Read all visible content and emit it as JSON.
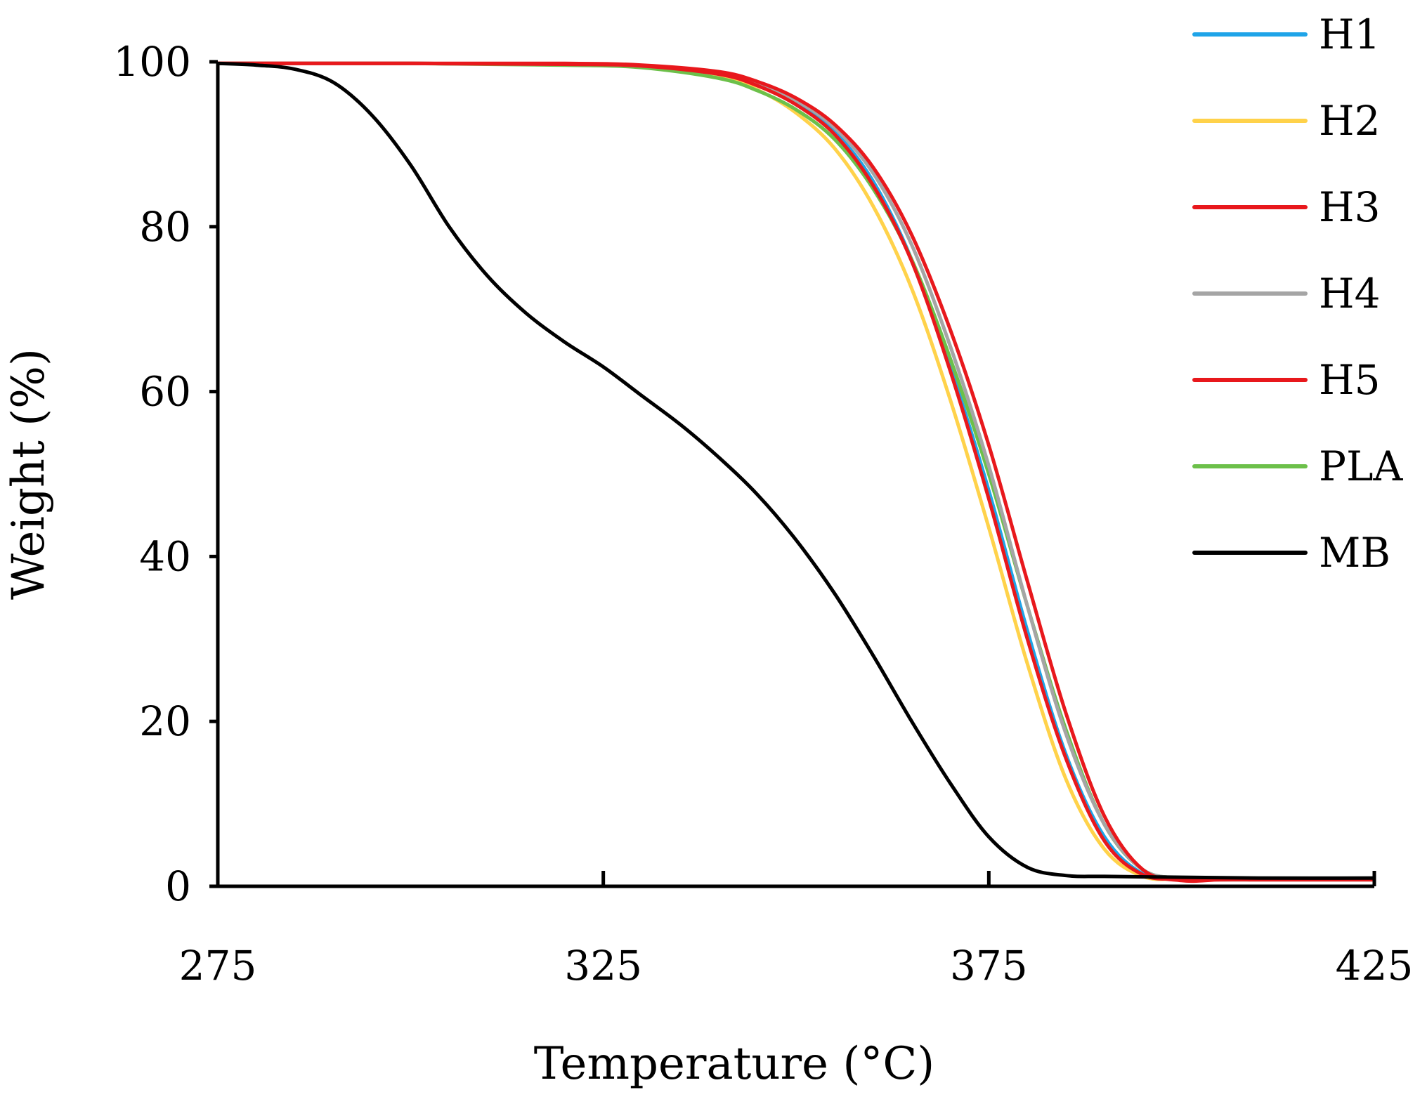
{
  "chart_data": {
    "type": "line",
    "title": "",
    "xlabel": "Temperature (°C)",
    "ylabel": "Weight (%)",
    "xlim": [
      275,
      425
    ],
    "ylim": [
      0,
      100
    ],
    "xticks": [
      275,
      325,
      375,
      425
    ],
    "yticks": [
      0,
      20,
      40,
      60,
      80,
      100
    ],
    "xtick_labels": [
      "275",
      "325",
      "375",
      "425"
    ],
    "ytick_labels": [
      "0",
      "20",
      "40",
      "60",
      "80",
      "100"
    ],
    "grid": false,
    "legend_position": "top-right",
    "series": [
      {
        "name": "H1",
        "color": "#1FA4E8",
        "x": [
          275,
          300,
          320,
          330,
          340,
          345,
          350,
          355,
          360,
          365,
          370,
          375,
          380,
          385,
          390,
          395,
          400,
          405,
          410,
          415,
          425
        ],
        "y": [
          99.8,
          99.8,
          99.7,
          99.5,
          98.5,
          97.2,
          95.0,
          91.5,
          85.5,
          76.0,
          63.0,
          48.0,
          31.0,
          16.0,
          6.0,
          1.5,
          0.9,
          0.8,
          0.8,
          0.8,
          0.8
        ]
      },
      {
        "name": "H2",
        "color": "#FFD24A",
        "x": [
          275,
          300,
          320,
          330,
          340,
          345,
          350,
          355,
          360,
          365,
          370,
          375,
          380,
          385,
          390,
          395,
          400,
          405,
          410,
          415,
          425
        ],
        "y": [
          99.8,
          99.8,
          99.7,
          99.4,
          98.2,
          96.6,
          93.8,
          89.5,
          82.5,
          72.5,
          59.0,
          43.5,
          27.0,
          13.0,
          4.5,
          1.2,
          0.9,
          0.8,
          0.8,
          0.8,
          0.8
        ]
      },
      {
        "name": "H3",
        "color": "#E8181C",
        "x": [
          275,
          300,
          320,
          330,
          340,
          345,
          350,
          355,
          360,
          365,
          370,
          375,
          380,
          385,
          390,
          395,
          400,
          405,
          410,
          415,
          425
        ],
        "y": [
          99.8,
          99.8,
          99.7,
          99.5,
          98.5,
          97.1,
          94.8,
          91.2,
          85.0,
          75.8,
          62.5,
          47.0,
          30.0,
          15.5,
          5.5,
          1.4,
          0.9,
          0.8,
          0.8,
          0.8,
          0.8
        ]
      },
      {
        "name": "H4",
        "color": "#A5A5A5",
        "x": [
          275,
          300,
          320,
          330,
          340,
          345,
          350,
          355,
          360,
          365,
          370,
          375,
          380,
          385,
          390,
          395,
          400,
          405,
          410,
          415,
          425
        ],
        "y": [
          99.8,
          99.8,
          99.7,
          99.5,
          98.6,
          97.3,
          95.3,
          92.0,
          86.5,
          77.8,
          65.5,
          51.0,
          34.0,
          18.5,
          7.5,
          2.0,
          1.0,
          0.9,
          0.9,
          0.9,
          0.9
        ]
      },
      {
        "name": "H5",
        "color": "#E8181C",
        "x": [
          275,
          300,
          320,
          330,
          340,
          345,
          350,
          355,
          360,
          365,
          370,
          375,
          380,
          385,
          390,
          395,
          400,
          405,
          410,
          415,
          425
        ],
        "y": [
          99.8,
          99.8,
          99.8,
          99.6,
          98.8,
          97.6,
          95.6,
          92.4,
          87.2,
          79.0,
          67.5,
          53.5,
          37.0,
          21.0,
          8.5,
          2.0,
          0.7,
          0.8,
          0.8,
          0.8,
          0.8
        ]
      },
      {
        "name": "PLA",
        "color": "#6CC04A",
        "x": [
          275,
          300,
          320,
          330,
          340,
          345,
          350,
          355,
          360,
          365,
          370,
          375,
          380,
          385,
          390,
          395,
          400,
          405,
          410,
          415,
          425
        ],
        "y": [
          99.8,
          99.8,
          99.6,
          99.3,
          98.0,
          96.5,
          94.2,
          90.6,
          84.6,
          76.0,
          64.0,
          50.0,
          34.0,
          19.0,
          7.5,
          2.0,
          1.0,
          0.9,
          0.9,
          0.9,
          0.9
        ]
      },
      {
        "name": "MB",
        "color": "#000000",
        "x": [
          275,
          280,
          285,
          290,
          295,
          300,
          305,
          310,
          315,
          320,
          325,
          330,
          335,
          340,
          345,
          350,
          355,
          360,
          365,
          370,
          375,
          380,
          385,
          390,
          400,
          410,
          425
        ],
        "y": [
          99.8,
          99.6,
          99.1,
          97.5,
          93.5,
          87.5,
          80.0,
          74.0,
          69.5,
          66.0,
          63.0,
          59.5,
          56.0,
          52.0,
          47.5,
          42.0,
          35.5,
          28.0,
          20.0,
          12.5,
          6.0,
          2.3,
          1.3,
          1.2,
          1.1,
          1.0,
          1.0
        ]
      }
    ]
  }
}
